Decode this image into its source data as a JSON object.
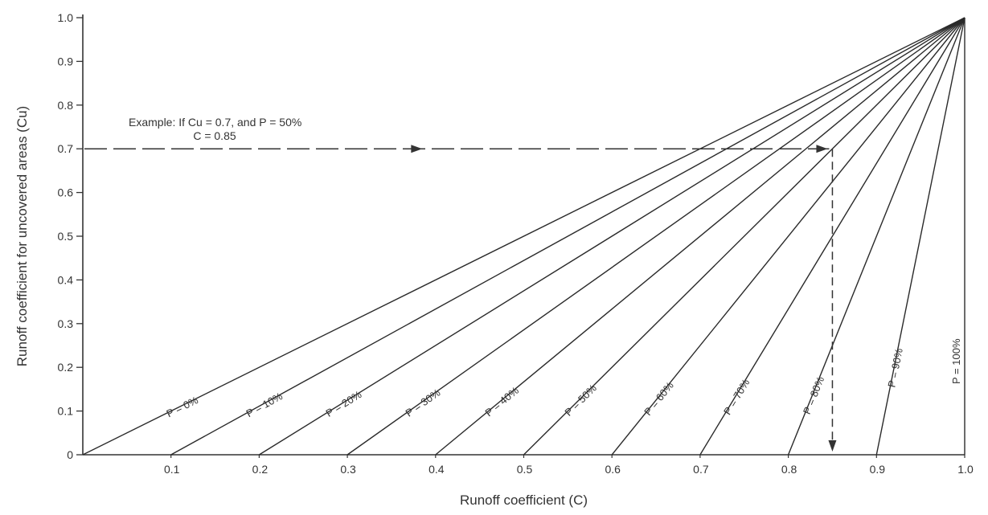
{
  "chart_data": {
    "type": "line",
    "xlabel": "Runoff coefficient (C)",
    "ylabel": "Runoff coefficient for uncovered areas (Cu)",
    "xlim": [
      0,
      1.0
    ],
    "ylim": [
      0,
      1.0
    ],
    "x_ticks": [
      "0.1",
      "0.2",
      "0.3",
      "0.4",
      "0.5",
      "0.6",
      "0.7",
      "0.8",
      "0.9",
      "1.0"
    ],
    "y_ticks": [
      "0",
      "0.1",
      "0.2",
      "0.3",
      "0.4",
      "0.5",
      "0.6",
      "0.7",
      "0.8",
      "0.9",
      "1.0"
    ],
    "grid": false,
    "series": [
      {
        "name": "P = 0%",
        "x": [
          0.0,
          1.0
        ],
        "y": [
          0,
          1
        ]
      },
      {
        "name": "P = 10%",
        "x": [
          0.1,
          1.0
        ],
        "y": [
          0,
          1
        ]
      },
      {
        "name": "P = 20%",
        "x": [
          0.2,
          1.0
        ],
        "y": [
          0,
          1
        ]
      },
      {
        "name": "P = 30%",
        "x": [
          0.3,
          1.0
        ],
        "y": [
          0,
          1
        ]
      },
      {
        "name": "P = 40%",
        "x": [
          0.4,
          1.0
        ],
        "y": [
          0,
          1
        ]
      },
      {
        "name": "P = 50%",
        "x": [
          0.5,
          1.0
        ],
        "y": [
          0,
          1
        ]
      },
      {
        "name": "P = 60%",
        "x": [
          0.6,
          1.0
        ],
        "y": [
          0,
          1
        ]
      },
      {
        "name": "P = 70%",
        "x": [
          0.7,
          1.0
        ],
        "y": [
          0,
          1
        ]
      },
      {
        "name": "P = 80%",
        "x": [
          0.8,
          1.0
        ],
        "y": [
          0,
          1
        ]
      },
      {
        "name": "P = 90%",
        "x": [
          0.9,
          1.0
        ],
        "y": [
          0,
          1
        ]
      },
      {
        "name": "P = 100%",
        "x": [
          1.0,
          1.0
        ],
        "y": [
          0,
          1
        ]
      }
    ],
    "annotation": {
      "line1": "Example: If Cu = 0.7, and P = 50%",
      "line2": "C = 0.85",
      "cu": 0.7,
      "c": 0.85
    }
  }
}
